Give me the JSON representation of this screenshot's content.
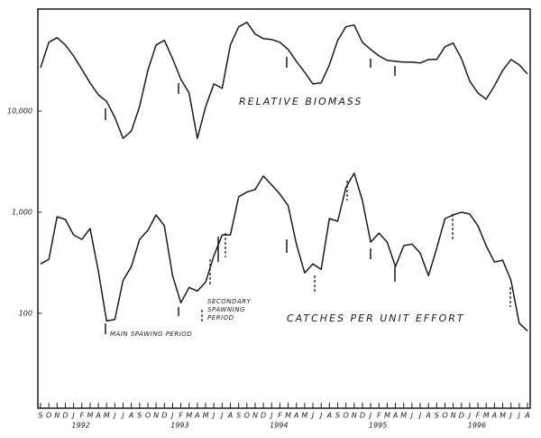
{
  "chart_data": {
    "type": "line",
    "categories": [
      "S",
      "O",
      "N",
      "D",
      "J",
      "F",
      "M",
      "A",
      "M",
      "J",
      "J",
      "A",
      "S",
      "O",
      "N",
      "D",
      "J",
      "F",
      "M",
      "A",
      "M",
      "J",
      "J",
      "A",
      "S",
      "O",
      "N",
      "D",
      "J",
      "F",
      "M",
      "A",
      "M",
      "J",
      "J",
      "A",
      "S",
      "O",
      "N",
      "D",
      "J",
      "F",
      "M",
      "A",
      "M",
      "J",
      "J",
      "A",
      "S",
      "O",
      "N",
      "D",
      "J",
      "F",
      "M",
      "A",
      "M",
      "J",
      "J",
      "A"
    ],
    "years": [
      "1992",
      "1993",
      "1994",
      "1995",
      "1996"
    ],
    "log": true,
    "ylim": [
      12,
      85000
    ],
    "yticks": [
      100,
      {
        "value": 1000,
        "label": "1,000"
      },
      {
        "value": 10000,
        "label": "10,000"
      }
    ],
    "series": [
      {
        "name": "RELATIVE BIOMASS",
        "color": "#1a1a1a",
        "values": [
          26900,
          48000,
          53300,
          45100,
          35200,
          25900,
          19000,
          14500,
          12500,
          8650,
          5380,
          6350,
          11100,
          25300,
          45100,
          50100,
          33100,
          20600,
          15100,
          5380,
          11100,
          18600,
          16800,
          45100,
          68200,
          75700,
          57800,
          52200,
          51100,
          48000,
          40700,
          31100,
          24300,
          18600,
          19000,
          28700,
          50100,
          68200,
          71100,
          48000,
          40700,
          35200,
          31800,
          31100,
          30500,
          30500,
          29900,
          32400,
          32400,
          43300,
          47100,
          33100,
          19800,
          15100,
          13100,
          17800,
          25300,
          32400,
          28700,
          23300
        ]
      },
      {
        "name": "CATCHES PER UNIT EFFORT",
        "color": "#1a1a1a",
        "values": [
          308,
          342,
          902,
          848,
          597,
          538,
          690,
          261,
          84,
          87,
          212,
          290,
          538,
          662,
          940,
          733,
          236,
          127,
          180,
          166,
          204,
          371,
          597,
          597,
          1420,
          1580,
          1680,
          2280,
          1860,
          1510,
          1160,
          485,
          251,
          308,
          272,
          865,
          813,
          1750,
          2430,
          1310,
          506,
          622,
          506,
          290,
          466,
          485,
          395,
          236,
          438,
          865,
          940,
          1000,
          960,
          733,
          466,
          321,
          335,
          212,
          80,
          67
        ]
      }
    ],
    "annotations": {
      "main": "MAIN SPAWING PERIOD",
      "secondary": [
        "SECONDARY",
        "SPAWNING",
        "PERIOD"
      ]
    }
  }
}
